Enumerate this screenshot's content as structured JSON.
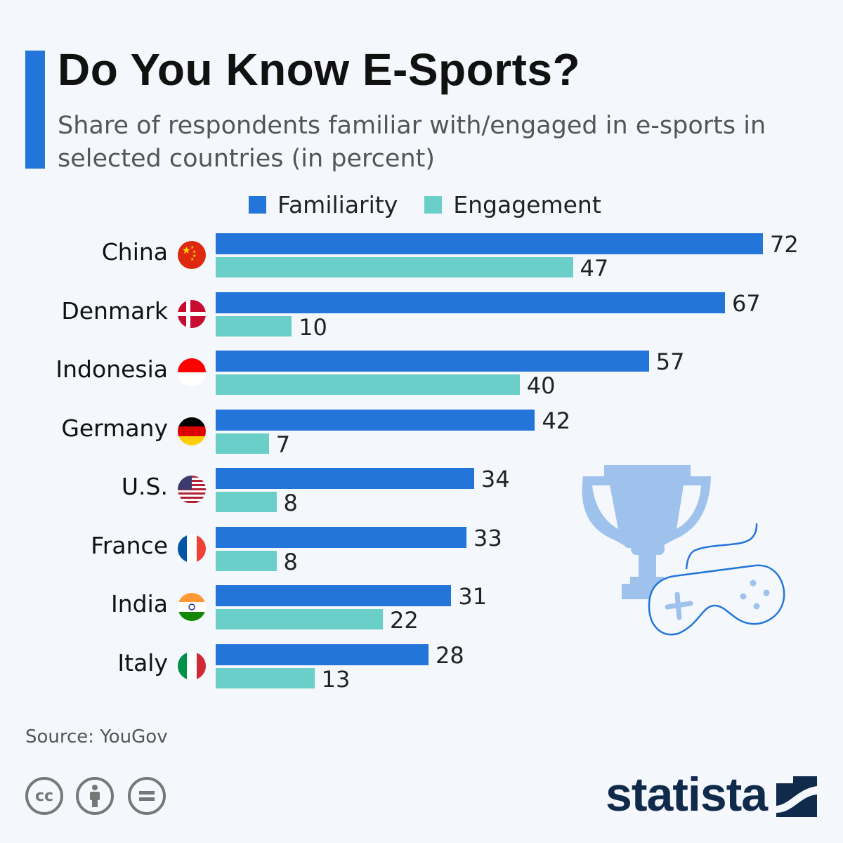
{
  "header": {
    "title": "Do You Know E-Sports?",
    "subtitle": "Share of respondents familiar with/engaged in e-sports in selected countries (in percent)"
  },
  "chart_data": {
    "type": "bar",
    "orientation": "horizontal",
    "categories": [
      "China",
      "Denmark",
      "Indonesia",
      "Germany",
      "U.S.",
      "France",
      "India",
      "Italy"
    ],
    "series": [
      {
        "name": "Familiarity",
        "color": "#2475d9",
        "values": [
          72,
          67,
          57,
          42,
          34,
          33,
          31,
          28
        ]
      },
      {
        "name": "Engagement",
        "color": "#6bcfc9",
        "values": [
          47,
          10,
          40,
          7,
          8,
          8,
          22,
          13
        ]
      }
    ],
    "legend": "top",
    "grid": false,
    "data_labels": true
  },
  "footer": {
    "source": "Source: YouGov",
    "brand": "statista",
    "license_icons": [
      "cc-icon",
      "attribution-icon",
      "no-derivatives-icon"
    ]
  }
}
